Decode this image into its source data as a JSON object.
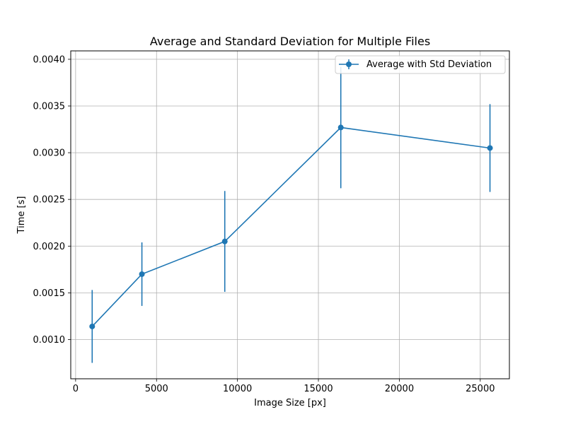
{
  "chart_data": {
    "type": "line",
    "title": "Average and Standard Deviation for Multiple Files",
    "xlabel": "Image Size [px]",
    "ylabel": "Time [s]",
    "xlim": [
      -300,
      26800
    ],
    "ylim": [
      0.00058,
      0.00409
    ],
    "grid": true,
    "legend_position": "top-right",
    "x_ticks": [
      0,
      5000,
      10000,
      15000,
      20000,
      25000
    ],
    "x_tick_labels": [
      "0",
      "5000",
      "10000",
      "15000",
      "20000",
      "25000"
    ],
    "y_ticks": [
      0.001,
      0.0015,
      0.002,
      0.0025,
      0.003,
      0.0035,
      0.004
    ],
    "y_tick_labels": [
      "0.0010",
      "0.0015",
      "0.0020",
      "0.0025",
      "0.0030",
      "0.0035",
      "0.0040"
    ],
    "series": [
      {
        "name": "Average with Std Deviation",
        "color": "#1f77b4",
        "x": [
          1024,
          4096,
          9216,
          16384,
          25600
        ],
        "y": [
          0.00114,
          0.0017,
          0.00205,
          0.00327,
          0.00305
        ],
        "yerr": [
          0.00039,
          0.00034,
          0.00054,
          0.00065,
          0.00047
        ]
      }
    ]
  }
}
